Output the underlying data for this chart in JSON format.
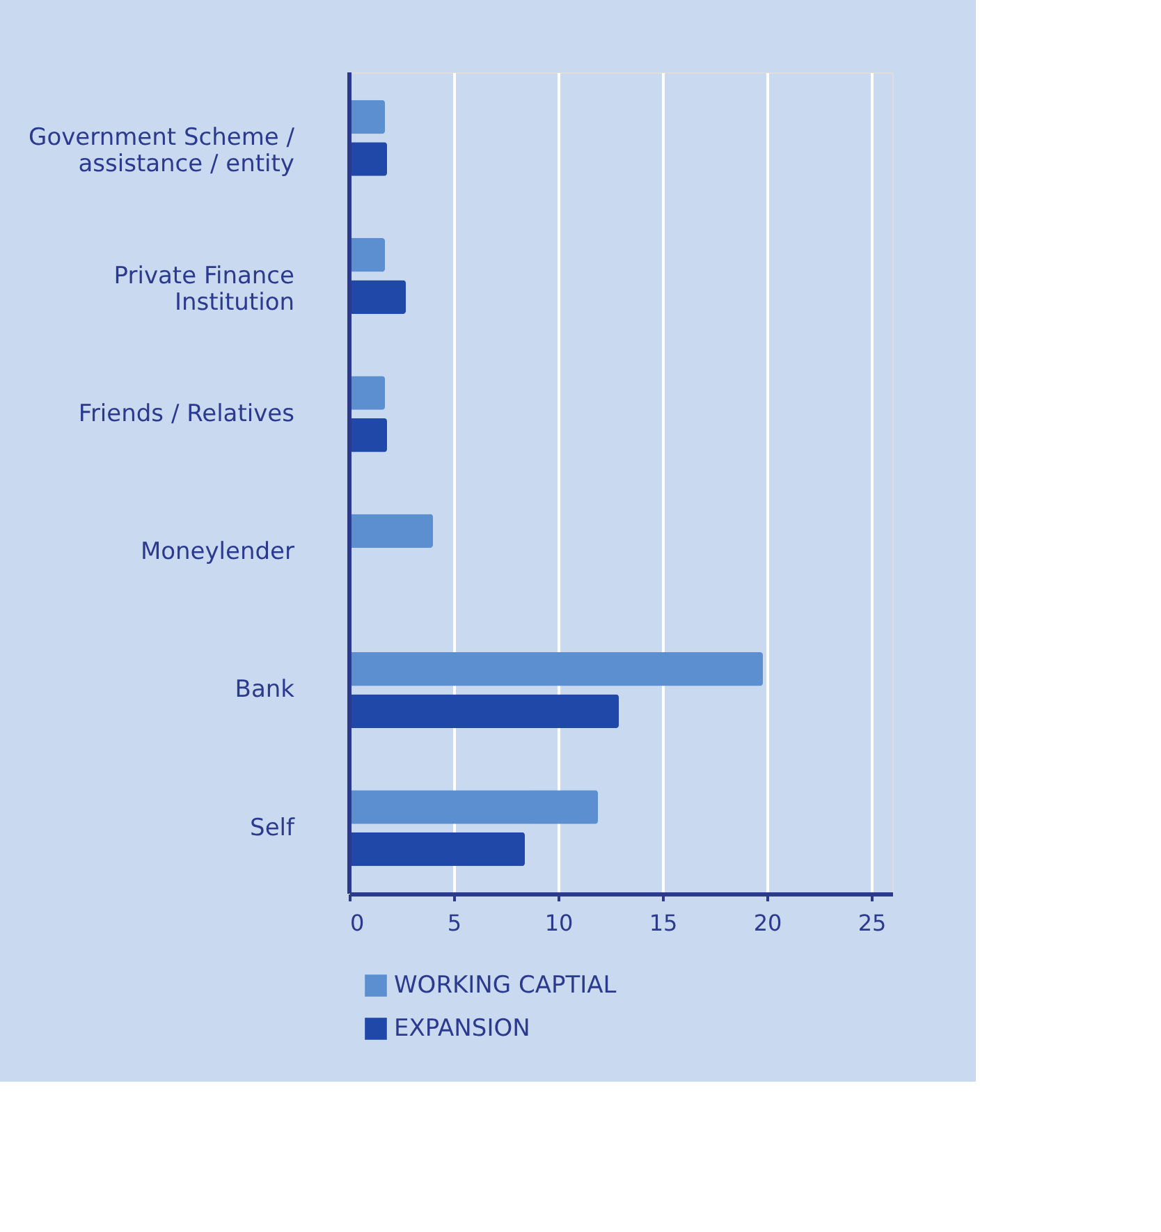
{
  "chart_data": {
    "type": "bar",
    "orientation": "horizontal",
    "categories": [
      "Government Scheme /\nassistance / entity",
      "Private Finance\nInstitution",
      "Friends / Relatives",
      "Moneylender",
      "Bank",
      "Self"
    ],
    "series": [
      {
        "name": "WORKING CAPTIAL",
        "color": "#5b8fd0",
        "values": [
          1.7,
          1.7,
          1.7,
          4.0,
          19.8,
          11.9
        ]
      },
      {
        "name": "EXPANSION",
        "color": "#1f48a8",
        "values": [
          1.8,
          2.7,
          1.8,
          null,
          12.9,
          8.4
        ]
      }
    ],
    "xlim": [
      0,
      26
    ],
    "xticks": [
      0,
      5,
      10,
      15,
      20,
      25
    ],
    "grid": "x",
    "legend": "bottom"
  }
}
